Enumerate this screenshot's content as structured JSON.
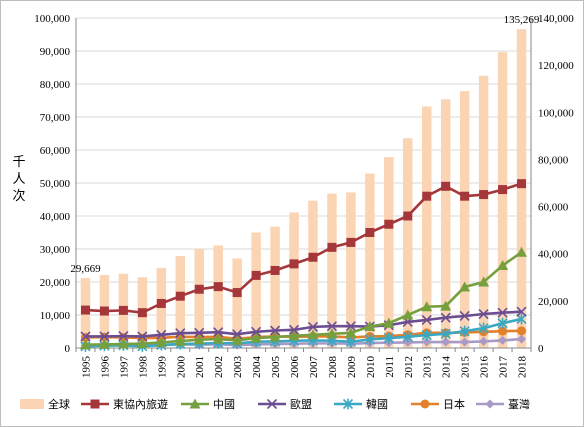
{
  "chart_data": {
    "type": "bar+line",
    "ylabel": "千人次",
    "categories": [
      "1995",
      "1996",
      "1997",
      "1998",
      "1999",
      "2000",
      "2001",
      "2002",
      "2003",
      "2004",
      "2005",
      "2006",
      "2007",
      "2008",
      "2009",
      "2010",
      "2011",
      "2012",
      "2013",
      "2014",
      "2015",
      "2016",
      "2017",
      "2018"
    ],
    "left_axis": {
      "min": 0,
      "max": 100000,
      "step": 10000,
      "ticks": [
        "0",
        "10,000",
        "20,000",
        "30,000",
        "40,000",
        "50,000",
        "60,000",
        "70,000",
        "80,000",
        "90,000",
        "100,000"
      ]
    },
    "right_axis": {
      "min": 0,
      "max": 140000,
      "step": 20000,
      "ticks": [
        "0",
        "20,000",
        "40,000",
        "60,000",
        "80,000",
        "100,000",
        "120,000",
        "140,000"
      ]
    },
    "bars": {
      "name": "全球",
      "axis": "right",
      "color": "#fbd4b4",
      "values": [
        29669,
        31000,
        31500,
        30000,
        34000,
        39000,
        42000,
        43500,
        38000,
        49000,
        51500,
        57500,
        62500,
        65500,
        66000,
        74000,
        81000,
        89000,
        102500,
        105500,
        109000,
        115500,
        125500,
        135269
      ]
    },
    "series": [
      {
        "name": "東協內旅遊",
        "color": "#a5373b",
        "marker": "square",
        "values": [
          11500,
          11200,
          11400,
          10700,
          13500,
          15700,
          17800,
          18600,
          16800,
          22000,
          23500,
          25500,
          27500,
          30500,
          32000,
          35000,
          37500,
          40000,
          46000,
          49000,
          46000,
          46500,
          48000,
          49800
        ]
      },
      {
        "name": "中國",
        "color": "#76a03e",
        "marker": "triangle",
        "values": [
          1000,
          1100,
          1200,
          1300,
          1700,
          2100,
          2500,
          2700,
          2300,
          3000,
          3300,
          3700,
          4000,
          4300,
          4600,
          6500,
          7500,
          10000,
          12500,
          12700,
          18500,
          20000,
          25000,
          29000
        ]
      },
      {
        "name": "歐盟",
        "color": "#6a4d93",
        "marker": "x",
        "values": [
          3500,
          3500,
          3600,
          3500,
          4000,
          4500,
          4600,
          4800,
          4200,
          4900,
          5300,
          5500,
          6400,
          6600,
          6600,
          6500,
          6900,
          7900,
          8500,
          9200,
          9700,
          10300,
          10700,
          11000
        ]
      },
      {
        "name": "韓國",
        "color": "#3aa7c3",
        "marker": "star",
        "values": [
          500,
          700,
          800,
          500,
          900,
          1200,
          1300,
          1500,
          1400,
          1900,
          2000,
          2200,
          2300,
          2200,
          1900,
          2600,
          3000,
          3400,
          3900,
          4300,
          5100,
          6000,
          7500,
          8800
        ]
      },
      {
        "name": "日本",
        "color": "#e2802b",
        "marker": "circle",
        "values": [
          3200,
          3300,
          3200,
          3000,
          3100,
          3400,
          3300,
          3400,
          2800,
          3300,
          3500,
          3400,
          3500,
          3500,
          3200,
          3500,
          3600,
          4000,
          4600,
          4600,
          4700,
          4900,
          5100,
          5200
        ]
      },
      {
        "name": "臺灣",
        "color": "#a79ac7",
        "marker": "diamond",
        "values": [
          800,
          900,
          900,
          900,
          1000,
          1100,
          1000,
          1100,
          900,
          1100,
          1200,
          1300,
          1400,
          1400,
          1300,
          1500,
          1600,
          1700,
          1800,
          1800,
          1800,
          2000,
          2300,
          2700
        ]
      }
    ],
    "annotations": [
      {
        "text": "29,669",
        "category": "1995",
        "series": "全球"
      },
      {
        "text": "135,269",
        "category": "2018",
        "series": "全球"
      }
    ],
    "legend_position": "bottom",
    "grid": "horizontal"
  }
}
